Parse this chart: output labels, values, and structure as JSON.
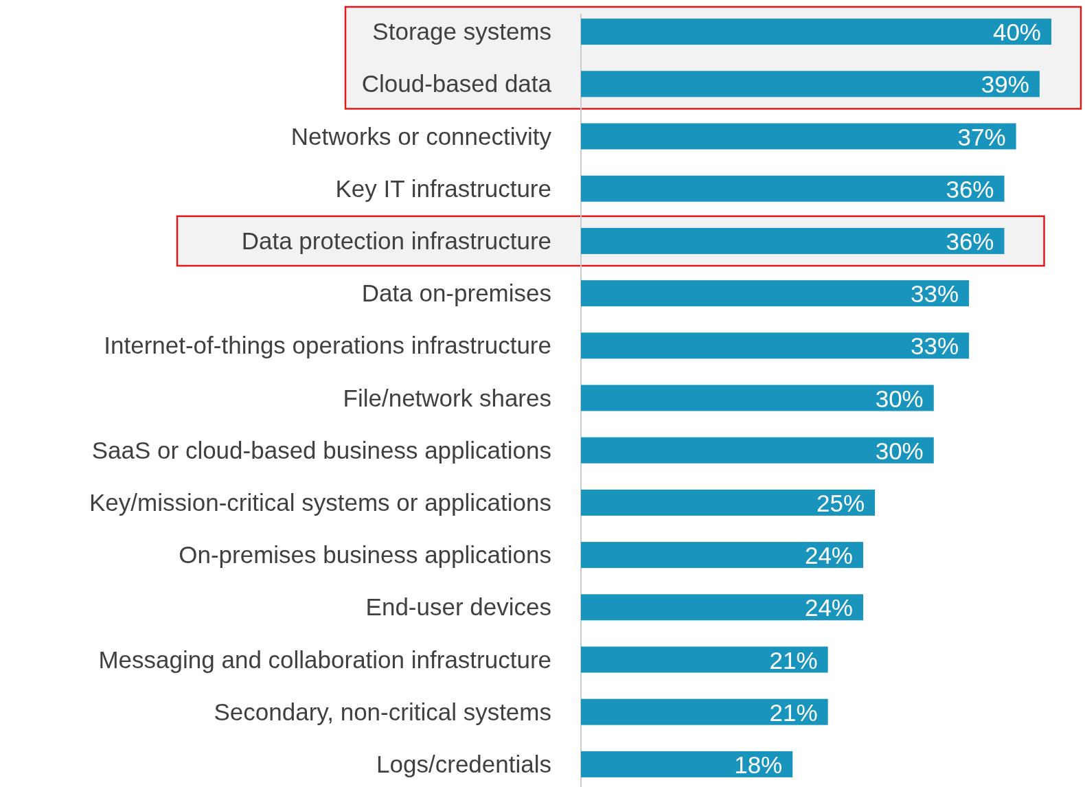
{
  "chart_data": {
    "type": "bar",
    "orientation": "horizontal",
    "categories": [
      "Storage systems",
      "Cloud-based data",
      "Networks or connectivity",
      "Key IT infrastructure",
      "Data protection infrastructure",
      "Data on-premises",
      "Internet-of-things operations infrastructure",
      "File/network shares",
      "SaaS or cloud-based business applications",
      "Key/mission-critical systems or applications",
      "On-premises business applications",
      "End-user devices",
      "Messaging and collaboration infrastructure",
      "Secondary, non-critical systems",
      "Logs/credentials"
    ],
    "values": [
      40,
      39,
      37,
      36,
      36,
      33,
      33,
      30,
      30,
      25,
      24,
      24,
      21,
      21,
      18
    ],
    "color": "#1995bd",
    "value_labels": [
      "40%",
      "39%",
      "37%",
      "36%",
      "36%",
      "33%",
      "33%",
      "30%",
      "30%",
      "25%",
      "24%",
      "24%",
      "21%",
      "21%",
      "18%"
    ],
    "bands": [
      {
        "axis": "y",
        "from": "Storage systems",
        "to": "Cloud-based data",
        "color": "#f2f2f2"
      },
      {
        "axis": "y",
        "from": "Data protection infrastructure",
        "to": "Data protection infrastructure",
        "color": "#f2f2f2"
      }
    ]
  }
}
